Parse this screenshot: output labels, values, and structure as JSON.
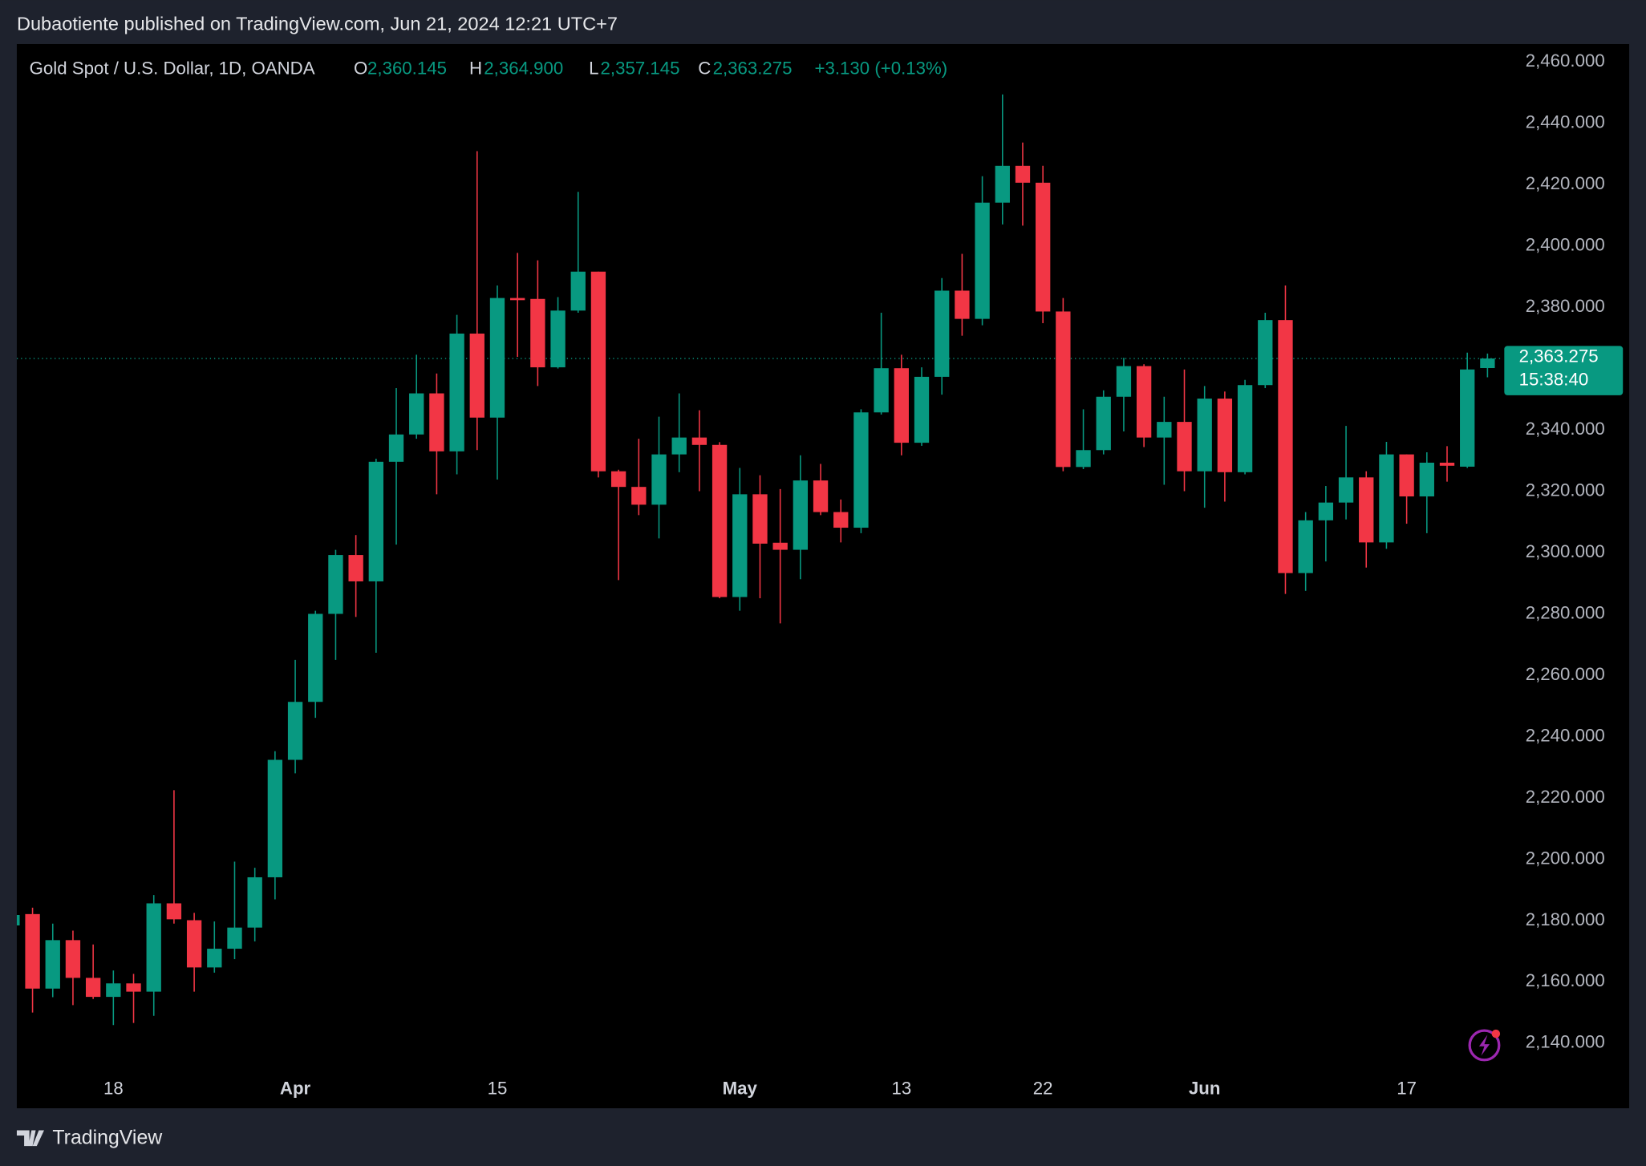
{
  "header": "Dubaotiente published on TradingView.com, Jun 21, 2024 12:21 UTC+7",
  "footer": "TradingView",
  "chart_data": {
    "type": "candlestick",
    "title": "Gold Spot / U.S. Dollar, 1D, OANDA",
    "legend": {
      "open_label": "O",
      "open": "2,360.145",
      "high_label": "H",
      "high": "2,364.900",
      "low_label": "L",
      "low": "2,357.145",
      "close_label": "C",
      "close": "2,363.275",
      "change": "+3.130 (+0.13%)"
    },
    "up_color": "#089981",
    "down_color": "#f23645",
    "categories": [
      null,
      null,
      null,
      null,
      null,
      "18",
      null,
      null,
      null,
      null,
      null,
      null,
      null,
      null,
      "Apr",
      null,
      null,
      null,
      null,
      null,
      null,
      null,
      null,
      null,
      "15",
      null,
      null,
      null,
      null,
      null,
      null,
      null,
      null,
      null,
      null,
      null,
      "May",
      null,
      null,
      null,
      null,
      null,
      null,
      null,
      "13",
      null,
      null,
      null,
      null,
      null,
      null,
      "22",
      null,
      null,
      null,
      null,
      null,
      null,
      null,
      "Jun",
      null,
      null,
      null,
      null,
      null,
      null,
      null,
      null,
      null,
      "17",
      null,
      null,
      null,
      null
    ],
    "open": [
      2178.4,
      2182.1,
      2157.8,
      2173.6,
      2161.3,
      2155.1,
      2159.5,
      2156.8,
      2185.6,
      2180.1,
      2164.7,
      2170.8,
      2177.7,
      2194.1,
      2232.4,
      2251.3,
      2280,
      2299.2,
      2290.6,
      2329.6,
      2338.5,
      2351.9,
      2333,
      2371.4,
      2344,
      2383,
      2382.7,
      2360.4,
      2378.9,
      2391.6,
      2326.5,
      2321.4,
      2315.6,
      2332,
      2337.5,
      2335.1,
      2285.5,
      2319,
      2303.2,
      2300.9,
      2323.5,
      2313.2,
      2308.1,
      2345.7,
      2360.1,
      2335.8,
      2357.3,
      2385.4,
      2376.2,
      2414.1,
      2426.1,
      2420.6,
      2378.6,
      2327.9,
      2333.4,
      2350.8,
      2360.8,
      2337.5,
      2342.6,
      2326.5,
      2350.2,
      2326.2,
      2354.6,
      2375.8,
      2293.3,
      2310.5,
      2316.3,
      2324.5,
      2303.3,
      2332,
      2318.3,
      2329.3,
      2328,
      2360.145
    ],
    "high": [
      2183,
      2184.2,
      2179,
      2176.7,
      2172.2,
      2163.7,
      2162.6,
      2188.3,
      2222.5,
      2182.5,
      2179.7,
      2199.2,
      2197.2,
      2235.2,
      2265,
      2281,
      2300.9,
      2305.7,
      2330.6,
      2353.6,
      2364.5,
      2358.4,
      2377.5,
      2430.9,
      2387.1,
      2397.7,
      2395.3,
      2383.3,
      2417.6,
      2391.6,
      2327,
      2337.1,
      2344.3,
      2351.9,
      2346.4,
      2336,
      2327.6,
      2325.2,
      2320.7,
      2331.7,
      2328.9,
      2317.3,
      2346.7,
      2378.2,
      2364.5,
      2360.4,
      2389.5,
      2397.4,
      2422.7,
      2449.4,
      2433.7,
      2426.1,
      2383,
      2346.7,
      2352.9,
      2363.5,
      2361.4,
      2350.8,
      2359.7,
      2354.3,
      2352.5,
      2356.3,
      2378.2,
      2387.1,
      2313.2,
      2321.7,
      2341.3,
      2326.5,
      2336.1,
      2332,
      2332.7,
      2334.7,
      2365.2,
      2364.9
    ],
    "low": [
      2177,
      2150,
      2155,
      2152.4,
      2154.4,
      2145.9,
      2146.6,
      2148.9,
      2179,
      2156.8,
      2163,
      2167.4,
      2173.2,
      2186.9,
      2228,
      2246.1,
      2265,
      2279,
      2267.3,
      2302.6,
      2337.1,
      2319,
      2325.5,
      2333.4,
      2323.8,
      2363.8,
      2354.3,
      2360,
      2378.2,
      2324.5,
      2291,
      2312.2,
      2304.6,
      2326.2,
      2320,
      2285.1,
      2281,
      2285.1,
      2276.9,
      2291.3,
      2312.2,
      2303.3,
      2306.3,
      2345,
      2331.7,
      2334.8,
      2351.5,
      2370.7,
      2374.1,
      2407,
      2406.6,
      2374.8,
      2326.5,
      2327.2,
      2332,
      2339.5,
      2334.4,
      2322.1,
      2320,
      2314.6,
      2316.6,
      2325.5,
      2353.6,
      2286.5,
      2287.5,
      2297.1,
      2310.8,
      2295.1,
      2301.2,
      2309.4,
      2306.3,
      2323.1,
      2327.6,
      2357.145
    ],
    "close": [
      2181.8,
      2157.8,
      2173.6,
      2161.3,
      2155.1,
      2159.5,
      2156.8,
      2185.6,
      2180.4,
      2164.7,
      2170.8,
      2177.7,
      2194.1,
      2232.4,
      2251.3,
      2280,
      2299.2,
      2290.6,
      2329.6,
      2338.5,
      2351.9,
      2333,
      2371.4,
      2344,
      2383,
      2382.3,
      2360.4,
      2378.9,
      2391.6,
      2326.5,
      2321.4,
      2315.6,
      2332,
      2337.5,
      2335.1,
      2285.5,
      2319,
      2302.9,
      2300.9,
      2323.5,
      2313.2,
      2308.1,
      2345.7,
      2360.1,
      2335.8,
      2357.3,
      2385.4,
      2376.2,
      2414.1,
      2426.1,
      2420.6,
      2378.6,
      2327.9,
      2333.4,
      2350.8,
      2360.8,
      2337.5,
      2342.6,
      2326.5,
      2350.2,
      2326.2,
      2354.6,
      2375.8,
      2293.3,
      2310.5,
      2316.3,
      2324.5,
      2303.3,
      2332,
      2318.3,
      2329.3,
      2328.3,
      2359.7,
      2363.275
    ],
    "ylim": [
      2131.1,
      2465.8
    ],
    "yticks": [
      {
        "value": 2140,
        "label": "2,140.000"
      },
      {
        "value": 2160,
        "label": "2,160.000"
      },
      {
        "value": 2180,
        "label": "2,180.000"
      },
      {
        "value": 2200,
        "label": "2,200.000"
      },
      {
        "value": 2220,
        "label": "2,220.000"
      },
      {
        "value": 2240,
        "label": "2,240.000"
      },
      {
        "value": 2260,
        "label": "2,260.000"
      },
      {
        "value": 2280,
        "label": "2,280.000"
      },
      {
        "value": 2300,
        "label": "2,300.000"
      },
      {
        "value": 2320,
        "label": "2,320.000"
      },
      {
        "value": 2340,
        "label": "2,340.000"
      },
      {
        "value": 2360,
        "label": "2,360.000"
      },
      {
        "value": 2380,
        "label": "2,380.000"
      },
      {
        "value": 2400,
        "label": "2,400.000"
      },
      {
        "value": 2420,
        "label": "2,420.000"
      },
      {
        "value": 2440,
        "label": "2,440.000"
      },
      {
        "value": 2460,
        "label": "2,460.000"
      }
    ],
    "last_price": {
      "value": 2363.275,
      "label": "2,363.275"
    },
    "countdown": "15:38:40"
  }
}
